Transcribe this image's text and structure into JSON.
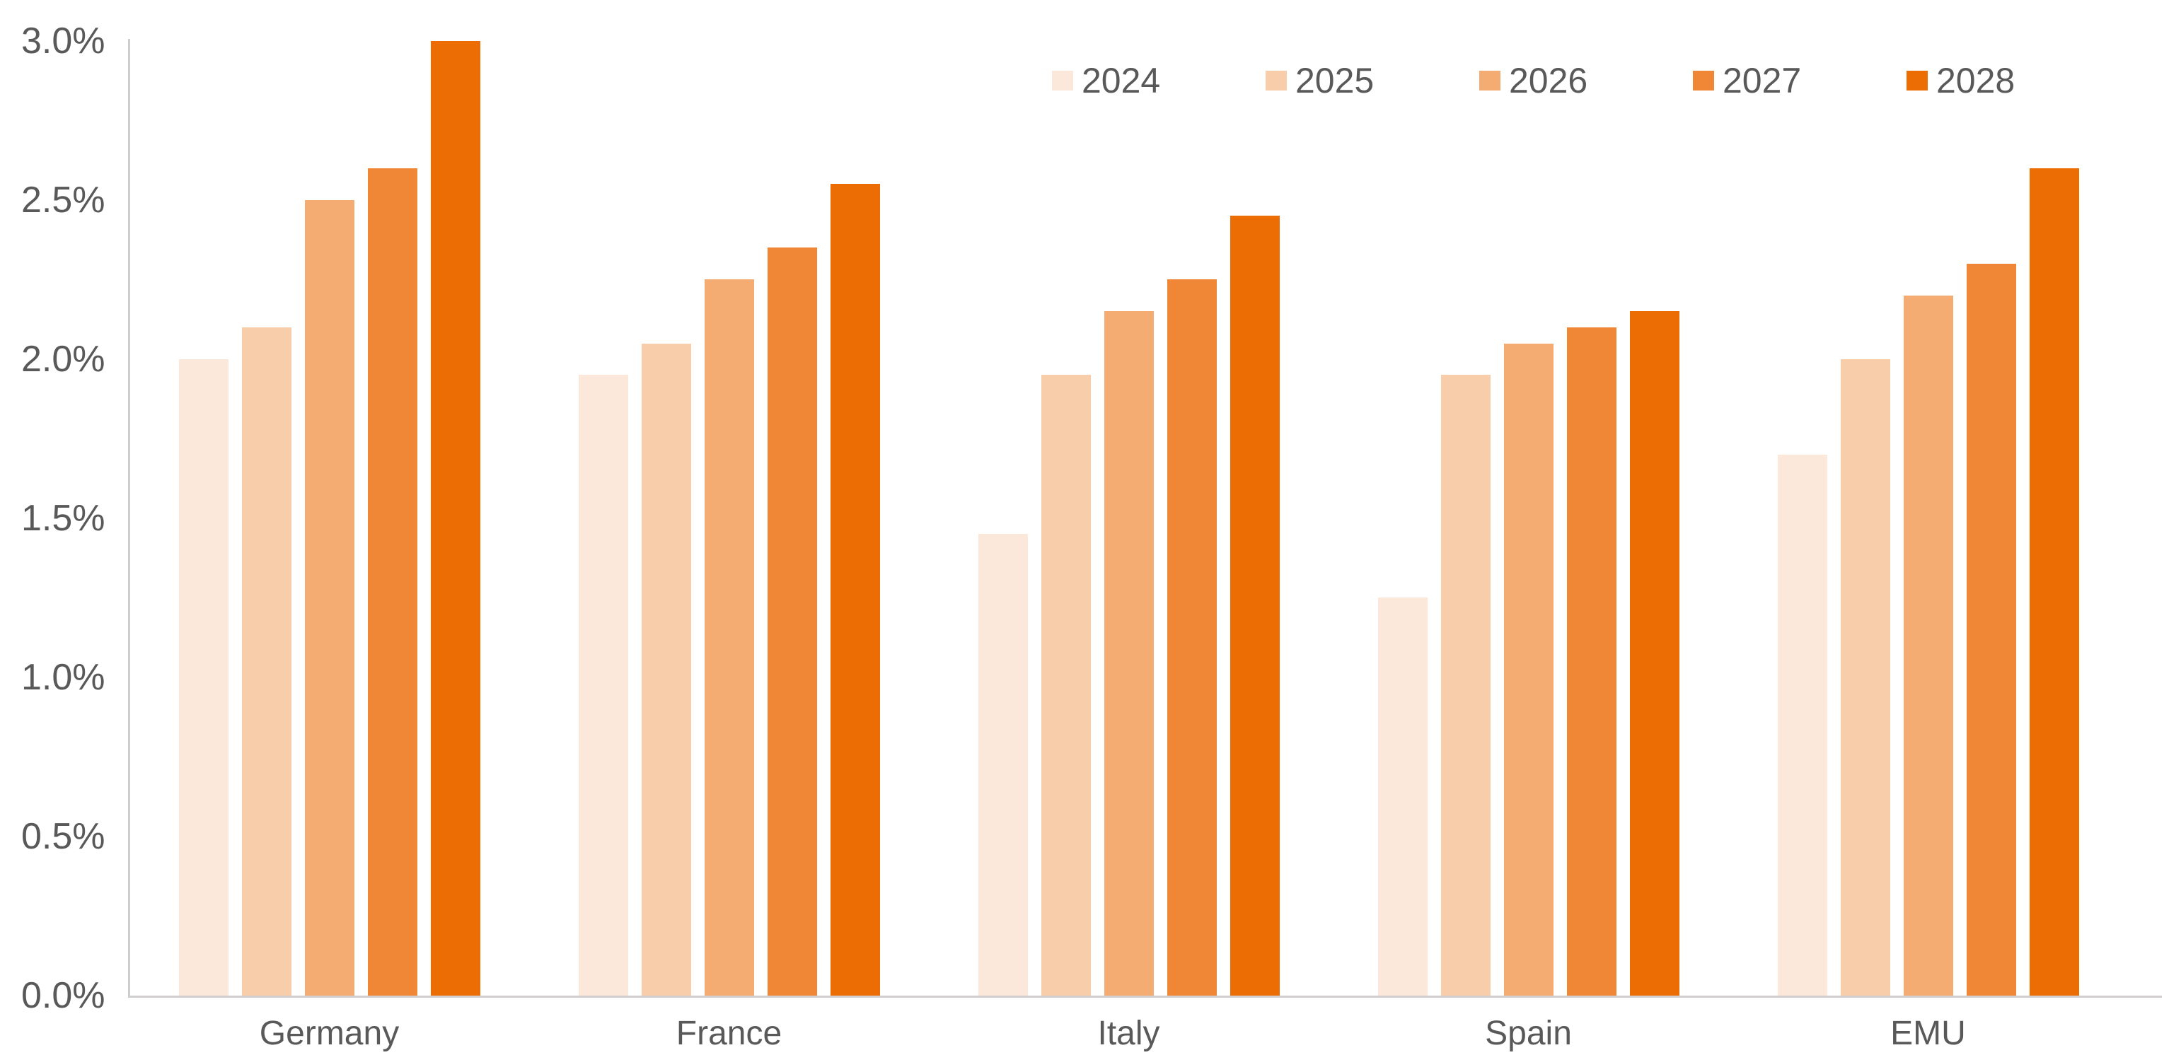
{
  "chart_data": {
    "type": "bar",
    "title": "",
    "xlabel": "",
    "ylabel": "",
    "categories": [
      "Germany",
      "France",
      "Italy",
      "Spain",
      "EMU"
    ],
    "series": [
      {
        "name": "2024",
        "color": "#FBE8DB",
        "values": [
          2.0,
          1.95,
          1.45,
          1.25,
          1.7
        ]
      },
      {
        "name": "2025",
        "color": "#F8CEAA",
        "values": [
          2.1,
          2.05,
          1.95,
          1.95,
          2.0
        ]
      },
      {
        "name": "2026",
        "color": "#F4AC72",
        "values": [
          2.5,
          2.25,
          2.15,
          2.05,
          2.2
        ]
      },
      {
        "name": "2027",
        "color": "#F08736",
        "values": [
          2.6,
          2.35,
          2.25,
          2.1,
          2.3
        ]
      },
      {
        "name": "2028",
        "color": "#ED6D05",
        "values": [
          3.0,
          2.55,
          2.45,
          2.15,
          2.6
        ]
      }
    ],
    "y_ticks": [
      "0.0%",
      "0.5%",
      "1.0%",
      "1.5%",
      "2.0%",
      "2.5%",
      "3.0%"
    ],
    "ylim": [
      0.0,
      3.0
    ],
    "y_tick_step": 0.5,
    "grid": false,
    "legend_position": "top-right",
    "background_color": "#FFFFFF",
    "axis_line_color": "#CFCDCD",
    "label_text_color": "#595959"
  }
}
